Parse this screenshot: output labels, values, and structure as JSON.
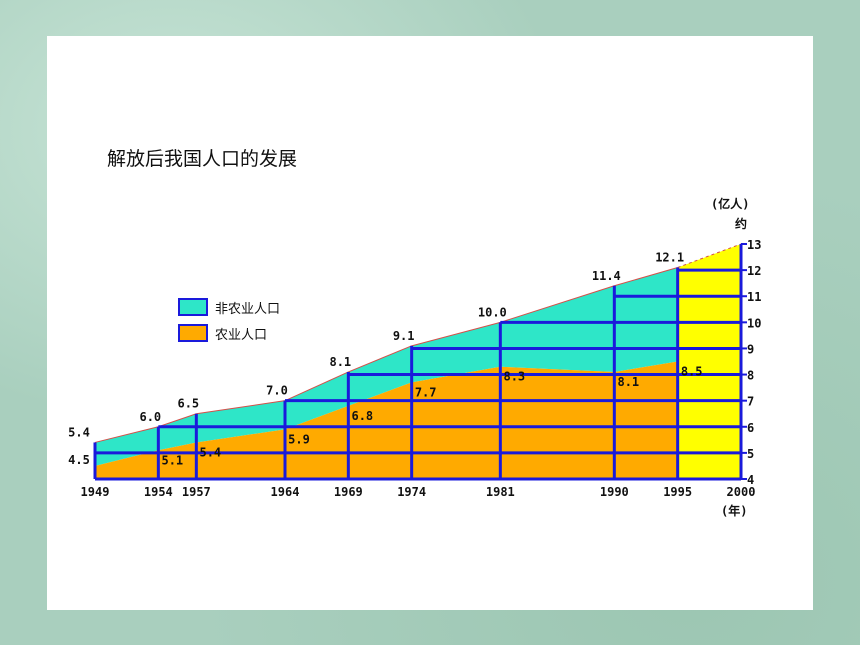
{
  "chart_data": {
    "type": "area",
    "title": "解放后我国人口的发展",
    "y_unit": "(亿人)",
    "y_unit_note": "约",
    "x_unit": "(年)",
    "ylim": [
      4,
      13
    ],
    "y_ticks": [
      "4",
      "5",
      "6",
      "7",
      "8",
      "9",
      "10",
      "11",
      "12",
      "13"
    ],
    "x": [
      1949,
      1954,
      1957,
      1964,
      1969,
      1974,
      1981,
      1990,
      1995
    ],
    "x_ticks": [
      "1949",
      "1954",
      "1957",
      "1964",
      "1969",
      "1974",
      "1981",
      "1990",
      "1995",
      "2000"
    ],
    "x_tick_values": [
      1949,
      1954,
      1957,
      1964,
      1969,
      1974,
      1981,
      1990,
      1995,
      2000
    ],
    "series": [
      {
        "name": "非农业人口",
        "color": "#2ee6c8",
        "values": [
          5.4,
          6.0,
          6.5,
          7.0,
          8.1,
          9.1,
          10.0,
          11.4,
          12.1
        ],
        "labels": [
          "5.4",
          "6.0",
          "6.5",
          "7.0",
          "8.1",
          "9.1",
          "10.0",
          "11.4",
          "12.1"
        ]
      },
      {
        "name": "农业人口",
        "color": "#ffaa00",
        "values": [
          4.5,
          5.1,
          5.4,
          5.9,
          6.8,
          7.7,
          8.3,
          8.1,
          8.5
        ],
        "labels": [
          "4.5",
          "5.1",
          "5.4",
          "5.9",
          "6.8",
          "7.7",
          "8.3",
          "8.1",
          "8.5"
        ]
      }
    ],
    "projection": {
      "from": 1995,
      "to": 2000,
      "end_value": 13,
      "color": "#ffff00"
    },
    "grid_color": "#1a1adb"
  }
}
